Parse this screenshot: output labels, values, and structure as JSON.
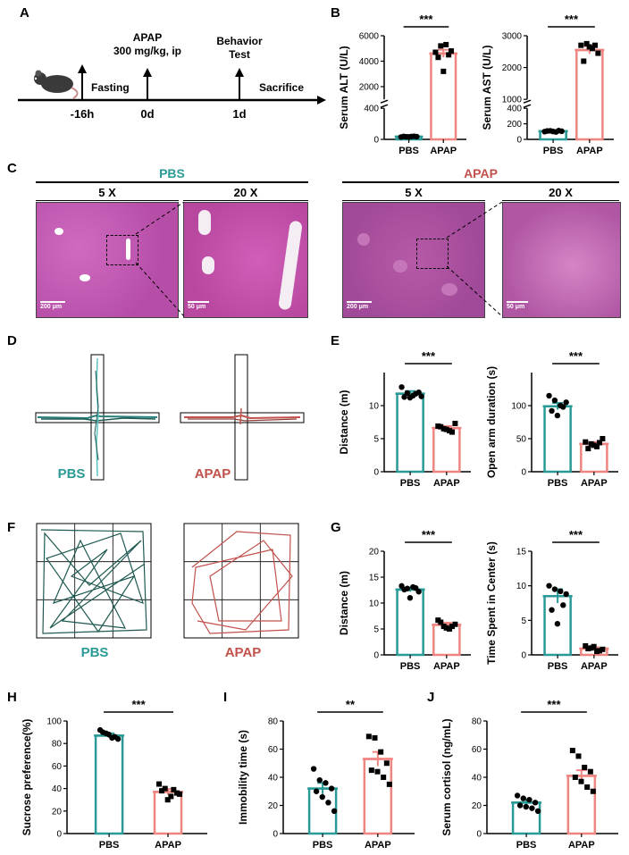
{
  "panel_labels": [
    "A",
    "B",
    "C",
    "D",
    "E",
    "F",
    "G",
    "H",
    "I",
    "J"
  ],
  "colors": {
    "pbs": "#2a9a96",
    "apap": "#ef8580",
    "pbs_track": "#1f5a52",
    "apap_track": "#c2504b",
    "tissue_pbs": "#c24fb0",
    "tissue_apap": "#b85aa8"
  },
  "timeline": {
    "events": [
      {
        "time": "-16h",
        "label": "Fasting"
      },
      {
        "time": "0d",
        "label": "APAP",
        "label2": "300 mg/kg, ip"
      },
      {
        "time": "1d",
        "label": "Behavior",
        "label2": "Test"
      }
    ],
    "end_label": "Sacrifice",
    "mouse_icon": "mouse-icon"
  },
  "histology": {
    "groups": [
      "PBS",
      "APAP"
    ],
    "mag_low": "5 X",
    "mag_high": "20 X",
    "scale_low": "200 μm",
    "scale_high": "50 μm"
  },
  "maze": {
    "pbs_label": "PBS",
    "apap_label": "APAP"
  },
  "openfield": {
    "pbs_label": "PBS",
    "apap_label": "APAP"
  },
  "chart_data": [
    {
      "id": "B1",
      "type": "bar",
      "categories": [
        "PBS",
        "APAP"
      ],
      "ylabel": "Serum ALT (U/L)",
      "sig": "***",
      "broken_axis": {
        "lower": [
          0,
          400
        ],
        "upper": [
          1000,
          6000
        ]
      },
      "lower_ticks": [
        0,
        400
      ],
      "upper_ticks": [
        2000,
        4000,
        6000
      ],
      "values": [
        35,
        4600
      ],
      "errors": [
        3,
        300
      ],
      "points": [
        [
          30,
          33,
          37,
          35,
          38,
          32,
          40
        ],
        [
          4700,
          5200,
          5300,
          4800,
          4300,
          3200,
          4500
        ]
      ]
    },
    {
      "id": "B2",
      "type": "bar",
      "categories": [
        "PBS",
        "APAP"
      ],
      "ylabel": "Serum AST (U/L)",
      "sig": "***",
      "broken_axis": {
        "lower": [
          0,
          400
        ],
        "upper": [
          1000,
          3000
        ]
      },
      "lower_ticks": [
        0,
        200,
        400
      ],
      "upper_ticks": [
        1000,
        2000,
        3000
      ],
      "values": [
        105,
        2550
      ],
      "errors": [
        5,
        120
      ],
      "points": [
        [
          100,
          110,
          95,
          105,
          108,
          102,
          112
        ],
        [
          2700,
          2750,
          2600,
          2450,
          2200,
          2650,
          2700
        ]
      ]
    },
    {
      "id": "E1",
      "type": "bar",
      "categories": [
        "PBS",
        "APAP"
      ],
      "ylabel": "Distance (m)",
      "sig": "***",
      "ylim": [
        0,
        15
      ],
      "ticks": [
        0,
        5,
        10
      ],
      "values": [
        11.8,
        6.6
      ],
      "errors": [
        0.4,
        0.3
      ],
      "points": [
        [
          12.8,
          11.9,
          11.5,
          12.0,
          11.3,
          11.2,
          11.8,
          11.4
        ],
        [
          6.9,
          6.5,
          6.2,
          7.3,
          6.8,
          6.4,
          6.0
        ]
      ]
    },
    {
      "id": "E2",
      "type": "bar",
      "categories": [
        "PBS",
        "APAP"
      ],
      "ylabel": "Open arm duration (s)",
      "sig": "***",
      "ylim": [
        0,
        150
      ],
      "ticks": [
        0,
        50,
        100
      ],
      "values": [
        99,
        42
      ],
      "errors": [
        5,
        3
      ],
      "points": [
        [
          115,
          108,
          100,
          105,
          92,
          85,
          98
        ],
        [
          45,
          42,
          38,
          50,
          35,
          40,
          44
        ]
      ]
    },
    {
      "id": "G1",
      "type": "bar",
      "categories": [
        "PBS",
        "APAP"
      ],
      "ylabel": "Distance (m)",
      "sig": "***",
      "ylim": [
        0,
        20
      ],
      "ticks": [
        0,
        5,
        10,
        15,
        20
      ],
      "values": [
        12.6,
        5.8
      ],
      "errors": [
        0.4,
        0.4
      ],
      "points": [
        [
          13.3,
          12.8,
          13.1,
          12.2,
          12.6,
          11.0,
          12.9
        ],
        [
          6.7,
          5.5,
          5.0,
          5.9,
          6.3,
          5.2,
          5.5
        ]
      ]
    },
    {
      "id": "G2",
      "type": "bar",
      "categories": [
        "PBS",
        "APAP"
      ],
      "ylabel": "Time Spent in Center (s)",
      "sig": "***",
      "ylim": [
        0,
        15
      ],
      "ticks": [
        0,
        5,
        10,
        15
      ],
      "values": [
        8.5,
        0.9
      ],
      "errors": [
        1.0,
        0.2
      ],
      "points": [
        [
          10.0,
          9.5,
          9.2,
          8.8,
          6.5,
          4.5,
          7.2
        ],
        [
          1.3,
          1.0,
          0.5,
          0.8,
          0.9,
          1.2,
          0.6
        ]
      ]
    },
    {
      "id": "H",
      "type": "bar",
      "categories": [
        "PBS",
        "APAP"
      ],
      "ylabel": "Sucrose preference(%)",
      "sig": "***",
      "ylim": [
        0,
        100
      ],
      "ticks": [
        0,
        20,
        40,
        60,
        80,
        100
      ],
      "values": [
        87,
        37
      ],
      "errors": [
        2,
        2.5
      ],
      "points": [
        [
          92,
          89,
          85,
          84,
          90,
          88,
          86
        ],
        [
          44,
          40,
          33,
          36,
          38,
          30,
          39,
          35
        ]
      ]
    },
    {
      "id": "I",
      "type": "bar",
      "categories": [
        "PBS",
        "APAP"
      ],
      "ylabel": "Immobility time (s)",
      "sig": "**",
      "ylim": [
        0,
        80
      ],
      "ticks": [
        0,
        20,
        40,
        60,
        80
      ],
      "values": [
        32,
        53
      ],
      "errors": [
        4,
        5
      ],
      "points": [
        [
          46,
          38,
          36,
          32,
          30,
          26,
          22,
          16
        ],
        [
          69,
          68,
          58,
          50,
          45,
          44,
          40,
          35
        ]
      ]
    },
    {
      "id": "J",
      "type": "bar",
      "categories": [
        "PBS",
        "APAP"
      ],
      "ylabel": "Serum cortisol (ng/mL)",
      "sig": "***",
      "ylim": [
        0,
        80
      ],
      "ticks": [
        0,
        20,
        40,
        60,
        80
      ],
      "values": [
        22,
        41
      ],
      "errors": [
        2,
        4
      ],
      "points": [
        [
          27,
          25,
          24,
          22,
          20,
          19,
          18,
          16
        ],
        [
          59,
          55,
          47,
          44,
          40,
          37,
          33,
          30
        ]
      ]
    }
  ]
}
